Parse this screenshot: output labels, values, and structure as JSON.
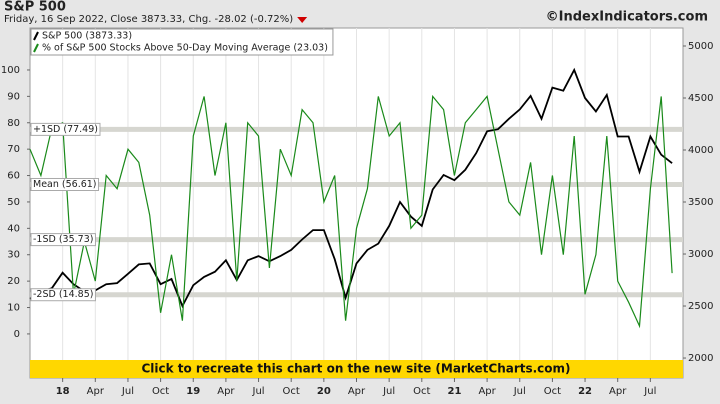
{
  "chart_data": {
    "type": "line",
    "title": "S&P 500",
    "subtitle": "Friday, 16 Sep 2022, Close 3873.33, Chg. -28.02 (-0.72%)",
    "watermark": "©IndexIndicators.com",
    "banner": "Click to recreate this chart on the new site (MarketCharts.com)",
    "x": [
      "2017-10",
      "2017-11",
      "2017-12",
      "2018-01",
      "2018-02",
      "2018-03",
      "2018-04",
      "2018-05",
      "2018-06",
      "2018-07",
      "2018-08",
      "2018-09",
      "2018-10",
      "2018-11",
      "2018-12",
      "2019-01",
      "2019-02",
      "2019-03",
      "2019-04",
      "2019-05",
      "2019-06",
      "2019-07",
      "2019-08",
      "2019-09",
      "2019-10",
      "2019-11",
      "2019-12",
      "2020-01",
      "2020-02",
      "2020-03",
      "2020-04",
      "2020-05",
      "2020-06",
      "2020-07",
      "2020-08",
      "2020-09",
      "2020-10",
      "2020-11",
      "2020-12",
      "2021-01",
      "2021-02",
      "2021-03",
      "2021-04",
      "2021-05",
      "2021-06",
      "2021-07",
      "2021-08",
      "2021-09",
      "2021-10",
      "2021-11",
      "2021-12",
      "2022-01",
      "2022-02",
      "2022-03",
      "2022-04",
      "2022-05",
      "2022-06",
      "2022-07",
      "2022-08",
      "2022-09"
    ],
    "xlim": [
      "2017-10",
      "2022-10"
    ],
    "xticks": [
      {
        "value": "2018-01",
        "label": "18"
      },
      {
        "value": "2018-04",
        "label": "Apr"
      },
      {
        "value": "2018-07",
        "label": "Jul"
      },
      {
        "value": "2018-10",
        "label": "Oct"
      },
      {
        "value": "2019-01",
        "label": "19"
      },
      {
        "value": "2019-04",
        "label": "Apr"
      },
      {
        "value": "2019-07",
        "label": "Jul"
      },
      {
        "value": "2019-10",
        "label": "Oct"
      },
      {
        "value": "2020-01",
        "label": "20"
      },
      {
        "value": "2020-04",
        "label": "Apr"
      },
      {
        "value": "2020-07",
        "label": "Jul"
      },
      {
        "value": "2020-10",
        "label": "Oct"
      },
      {
        "value": "2021-01",
        "label": "21"
      },
      {
        "value": "2021-04",
        "label": "Apr"
      },
      {
        "value": "2021-07",
        "label": "Jul"
      },
      {
        "value": "2021-10",
        "label": "Oct"
      },
      {
        "value": "2022-01",
        "label": "22"
      },
      {
        "value": "2022-04",
        "label": "Apr"
      },
      {
        "value": "2022-07",
        "label": "Jul"
      }
    ],
    "ylim": [
      -16.7,
      115.9
    ],
    "yticks": [
      0,
      10,
      20,
      30,
      40,
      50,
      60,
      70,
      80,
      90,
      100
    ],
    "y2lim": [
      1808,
      5173
    ],
    "y2ticks": [
      2000,
      2500,
      3000,
      3500,
      4000,
      4500,
      5000
    ],
    "reference_lines": [
      {
        "label": "+1SD (77.49)",
        "value": 77.49
      },
      {
        "label": "Mean (56.61)",
        "value": 56.61
      },
      {
        "label": "-1SD (35.73)",
        "value": 35.73
      },
      {
        "label": "-2SD (14.85)",
        "value": 14.85
      }
    ],
    "series": [
      {
        "name": "S&P 500 (3873.33)",
        "color": "#000000",
        "axis": "y2",
        "values": [
          2570,
          2640,
          2670,
          2820,
          2710,
          2640,
          2650,
          2710,
          2720,
          2810,
          2900,
          2910,
          2710,
          2760,
          2500,
          2700,
          2780,
          2830,
          2940,
          2750,
          2940,
          2980,
          2930,
          2980,
          3040,
          3140,
          3230,
          3230,
          2950,
          2580,
          2910,
          3040,
          3100,
          3270,
          3500,
          3360,
          3270,
          3620,
          3760,
          3710,
          3810,
          3970,
          4180,
          4200,
          4300,
          4390,
          4520,
          4300,
          4600,
          4570,
          4770,
          4500,
          4370,
          4530,
          4130,
          4130,
          3790,
          4130,
          3955,
          3873.33
        ]
      },
      {
        "name": "% of S&P 500 Stocks Above 50-Day Moving Average (23.03)",
        "color": "#1a8a1a",
        "values": [
          70,
          60,
          78,
          80,
          15,
          35,
          20,
          60,
          55,
          70,
          65,
          45,
          8,
          30,
          5,
          75,
          90,
          60,
          80,
          20,
          80,
          75,
          25,
          70,
          60,
          85,
          80,
          50,
          60,
          5,
          40,
          55,
          90,
          75,
          80,
          40,
          45,
          90,
          85,
          60,
          80,
          85,
          90,
          70,
          50,
          45,
          65,
          30,
          60,
          30,
          75,
          15,
          30,
          75,
          20,
          12,
          3,
          55,
          90,
          23.03
        ]
      }
    ]
  }
}
